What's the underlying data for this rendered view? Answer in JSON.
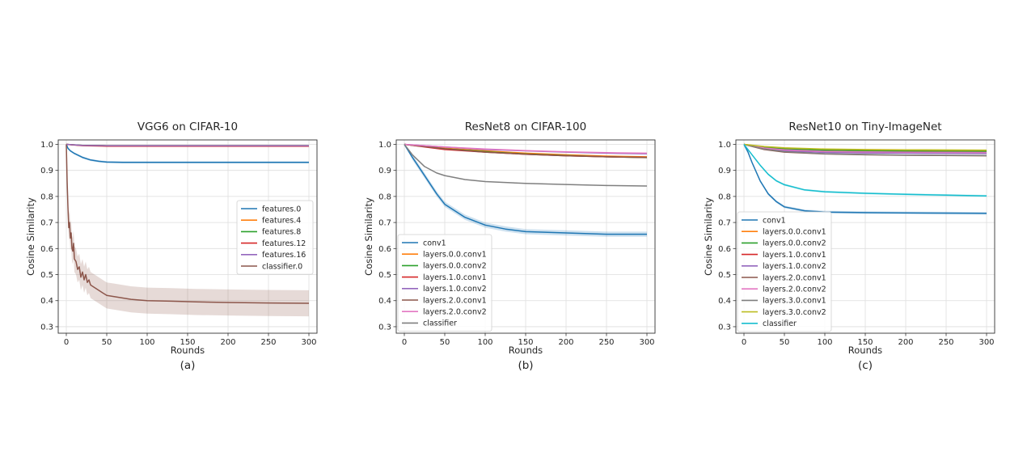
{
  "chart_data": [
    {
      "type": "line",
      "title": "VGG6 on CIFAR-10",
      "caption": "(a)",
      "xlabel": "Rounds",
      "ylabel": "Cosine Similarity",
      "xlim": [
        0,
        300
      ],
      "ylim": [
        0.3,
        1.0
      ],
      "xticks": [
        0,
        50,
        100,
        150,
        200,
        250,
        300
      ],
      "yticks": [
        0.3,
        0.4,
        0.5,
        0.6,
        0.7,
        0.8,
        0.9,
        1.0
      ],
      "grid": true,
      "legend_position": "center-right",
      "series": [
        {
          "name": "features.0",
          "color": "#1f77b4",
          "x": [
            0,
            2,
            5,
            10,
            20,
            30,
            40,
            50,
            70,
            100,
            150,
            200,
            250,
            300
          ],
          "y": [
            1.0,
            0.985,
            0.975,
            0.965,
            0.95,
            0.94,
            0.935,
            0.932,
            0.931,
            0.931,
            0.931,
            0.931,
            0.931,
            0.931
          ],
          "band": 0.004
        },
        {
          "name": "features.4",
          "color": "#ff7f0e",
          "x": [
            0,
            20,
            50,
            100,
            300
          ],
          "y": [
            1.0,
            0.996,
            0.995,
            0.995,
            0.995
          ],
          "band": 0.0
        },
        {
          "name": "features.8",
          "color": "#2ca02c",
          "x": [
            0,
            20,
            50,
            100,
            300
          ],
          "y": [
            1.0,
            0.996,
            0.995,
            0.995,
            0.995
          ],
          "band": 0.0
        },
        {
          "name": "features.12",
          "color": "#d62728",
          "x": [
            0,
            20,
            50,
            100,
            300
          ],
          "y": [
            1.0,
            0.995,
            0.993,
            0.993,
            0.993
          ],
          "band": 0.0
        },
        {
          "name": "features.16",
          "color": "#9467bd",
          "x": [
            0,
            20,
            50,
            100,
            300
          ],
          "y": [
            1.0,
            0.996,
            0.995,
            0.995,
            0.995
          ],
          "band": 0.0
        },
        {
          "name": "classifier.0",
          "color": "#8c564b",
          "x": [
            0,
            1,
            2,
            3,
            4,
            5,
            6,
            7,
            8,
            9,
            10,
            12,
            14,
            16,
            18,
            20,
            22,
            24,
            26,
            28,
            30,
            35,
            40,
            45,
            50,
            60,
            70,
            80,
            100,
            130,
            160,
            200,
            250,
            300
          ],
          "y": [
            1.0,
            0.86,
            0.76,
            0.68,
            0.7,
            0.64,
            0.66,
            0.6,
            0.59,
            0.62,
            0.56,
            0.55,
            0.52,
            0.53,
            0.49,
            0.51,
            0.48,
            0.5,
            0.47,
            0.48,
            0.46,
            0.45,
            0.44,
            0.43,
            0.42,
            0.415,
            0.41,
            0.405,
            0.4,
            0.398,
            0.395,
            0.393,
            0.391,
            0.39
          ],
          "band": 0.05
        }
      ]
    },
    {
      "type": "line",
      "title": "ResNet8 on CIFAR-100",
      "caption": "(b)",
      "xlabel": "Rounds",
      "ylabel": "Cosine Similarity",
      "xlim": [
        0,
        300
      ],
      "ylim": [
        0.3,
        1.0
      ],
      "xticks": [
        0,
        50,
        100,
        150,
        200,
        250,
        300
      ],
      "yticks": [
        0.3,
        0.4,
        0.5,
        0.6,
        0.7,
        0.8,
        0.9,
        1.0
      ],
      "grid": true,
      "legend_position": "lower-left",
      "series": [
        {
          "name": "conv1",
          "color": "#1f77b4",
          "x": [
            0,
            10,
            25,
            40,
            50,
            75,
            100,
            125,
            150,
            200,
            250,
            300
          ],
          "y": [
            1.0,
            0.95,
            0.88,
            0.81,
            0.77,
            0.72,
            0.69,
            0.675,
            0.665,
            0.66,
            0.655,
            0.655
          ],
          "band": 0.01
        },
        {
          "name": "layers.0.0.conv1",
          "color": "#ff7f0e",
          "x": [
            0,
            50,
            100,
            150,
            200,
            250,
            300
          ],
          "y": [
            1.0,
            0.985,
            0.975,
            0.966,
            0.96,
            0.955,
            0.952
          ],
          "band": 0.0
        },
        {
          "name": "layers.0.0.conv2",
          "color": "#2ca02c",
          "x": [
            0,
            50,
            100,
            150,
            200,
            250,
            300
          ],
          "y": [
            1.0,
            0.983,
            0.972,
            0.963,
            0.957,
            0.952,
            0.949
          ],
          "band": 0.0
        },
        {
          "name": "layers.1.0.conv1",
          "color": "#d62728",
          "x": [
            0,
            50,
            100,
            150,
            200,
            250,
            300
          ],
          "y": [
            1.0,
            0.98,
            0.97,
            0.962,
            0.956,
            0.952,
            0.95
          ],
          "band": 0.0
        },
        {
          "name": "layers.1.0.conv2",
          "color": "#9467bd",
          "x": [
            0,
            50,
            100,
            150,
            200,
            250,
            300
          ],
          "y": [
            1.0,
            0.99,
            0.98,
            0.975,
            0.97,
            0.966,
            0.964
          ],
          "band": 0.0
        },
        {
          "name": "layers.2.0.conv1",
          "color": "#8c564b",
          "x": [
            0,
            50,
            100,
            150,
            200,
            250,
            300
          ],
          "y": [
            1.0,
            0.983,
            0.97,
            0.962,
            0.956,
            0.952,
            0.95
          ],
          "band": 0.0
        },
        {
          "name": "layers.2.0.conv2",
          "color": "#e377c2",
          "x": [
            0,
            50,
            100,
            150,
            200,
            250,
            300
          ],
          "y": [
            1.0,
            0.99,
            0.982,
            0.976,
            0.971,
            0.968,
            0.966
          ],
          "band": 0.0
        },
        {
          "name": "classifier",
          "color": "#7f7f7f",
          "x": [
            0,
            10,
            25,
            40,
            50,
            75,
            100,
            150,
            200,
            250,
            300
          ],
          "y": [
            1.0,
            0.96,
            0.915,
            0.89,
            0.88,
            0.865,
            0.857,
            0.85,
            0.846,
            0.842,
            0.84
          ],
          "band": 0.0
        }
      ]
    },
    {
      "type": "line",
      "title": "ResNet10 on Tiny-ImageNet",
      "caption": "(c)",
      "xlabel": "Rounds",
      "ylabel": "Cosine Similarity",
      "xlim": [
        0,
        300
      ],
      "ylim": [
        0.3,
        1.0
      ],
      "xticks": [
        0,
        50,
        100,
        150,
        200,
        250,
        300
      ],
      "yticks": [
        0.3,
        0.4,
        0.5,
        0.6,
        0.7,
        0.8,
        0.9,
        1.0
      ],
      "grid": true,
      "legend_position": "lower-left",
      "series": [
        {
          "name": "conv1",
          "color": "#1f77b4",
          "x": [
            0,
            5,
            10,
            20,
            30,
            40,
            50,
            75,
            100,
            150,
            200,
            250,
            300
          ],
          "y": [
            1.0,
            0.97,
            0.93,
            0.86,
            0.81,
            0.78,
            0.76,
            0.745,
            0.74,
            0.738,
            0.737,
            0.736,
            0.735
          ],
          "band": 0.005
        },
        {
          "name": "layers.0.0.conv1",
          "color": "#ff7f0e",
          "x": [
            0,
            25,
            50,
            100,
            150,
            200,
            300
          ],
          "y": [
            1.0,
            0.99,
            0.985,
            0.98,
            0.978,
            0.977,
            0.976
          ],
          "band": 0.0
        },
        {
          "name": "layers.0.0.conv2",
          "color": "#2ca02c",
          "x": [
            0,
            25,
            50,
            100,
            150,
            200,
            300
          ],
          "y": [
            1.0,
            0.988,
            0.982,
            0.977,
            0.975,
            0.974,
            0.973
          ],
          "band": 0.0
        },
        {
          "name": "layers.1.0.conv1",
          "color": "#d62728",
          "x": [
            0,
            25,
            50,
            100,
            150,
            200,
            300
          ],
          "y": [
            1.0,
            0.985,
            0.978,
            0.972,
            0.97,
            0.969,
            0.968
          ],
          "band": 0.0
        },
        {
          "name": "layers.1.0.conv2",
          "color": "#9467bd",
          "x": [
            0,
            25,
            50,
            100,
            150,
            200,
            300
          ],
          "y": [
            1.0,
            0.983,
            0.975,
            0.969,
            0.967,
            0.966,
            0.965
          ],
          "band": 0.0
        },
        {
          "name": "layers.2.0.conv1",
          "color": "#8c564b",
          "x": [
            0,
            25,
            50,
            100,
            150,
            200,
            300
          ],
          "y": [
            1.0,
            0.98,
            0.97,
            0.963,
            0.96,
            0.958,
            0.956
          ],
          "band": 0.0
        },
        {
          "name": "layers.2.0.conv2",
          "color": "#e377c2",
          "x": [
            0,
            25,
            50,
            100,
            150,
            200,
            300
          ],
          "y": [
            1.0,
            0.986,
            0.979,
            0.973,
            0.971,
            0.97,
            0.969
          ],
          "band": 0.0
        },
        {
          "name": "layers.3.0.conv1",
          "color": "#7f7f7f",
          "x": [
            0,
            25,
            50,
            100,
            150,
            200,
            300
          ],
          "y": [
            1.0,
            0.982,
            0.972,
            0.964,
            0.961,
            0.959,
            0.957
          ],
          "band": 0.0
        },
        {
          "name": "layers.3.0.conv2",
          "color": "#bcbd22",
          "x": [
            0,
            25,
            50,
            100,
            150,
            200,
            300
          ],
          "y": [
            1.0,
            0.992,
            0.987,
            0.982,
            0.98,
            0.979,
            0.978
          ],
          "band": 0.0
        },
        {
          "name": "classifier",
          "color": "#17becf",
          "x": [
            0,
            10,
            20,
            30,
            40,
            50,
            75,
            100,
            150,
            200,
            250,
            300
          ],
          "y": [
            1.0,
            0.96,
            0.92,
            0.885,
            0.86,
            0.845,
            0.825,
            0.818,
            0.812,
            0.808,
            0.805,
            0.802
          ],
          "band": 0.004
        }
      ]
    }
  ]
}
